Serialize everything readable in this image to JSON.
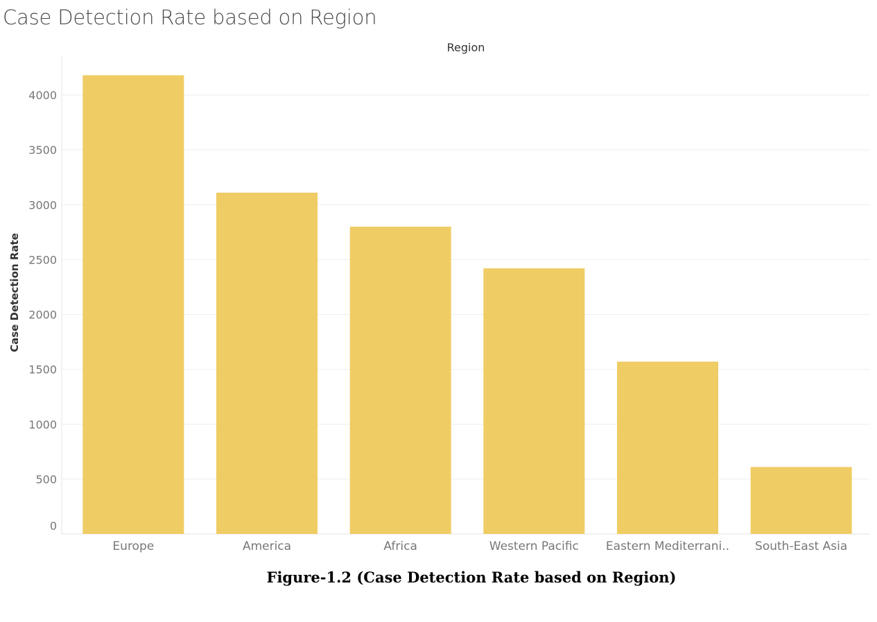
{
  "chart_data": {
    "type": "bar",
    "title": "Case Detection Rate based on Region",
    "header_label": "Region",
    "xlabel": "",
    "ylabel": "Case Detection Rate",
    "categories": [
      "Europe",
      "America",
      "Africa",
      "Western Pacific",
      "Eastern Mediterrani..",
      "South-East Asia"
    ],
    "values": [
      4180,
      3110,
      2800,
      2420,
      1570,
      610
    ],
    "ylim": [
      0,
      4000
    ],
    "yticks": [
      0,
      500,
      1000,
      1500,
      2000,
      2500,
      3000,
      3500,
      4000
    ],
    "grid": true,
    "bar_color": "#efcc64",
    "grid_color": "#eeeeee"
  },
  "caption": "Figure-1.2 (Case Detection Rate based on Region)"
}
